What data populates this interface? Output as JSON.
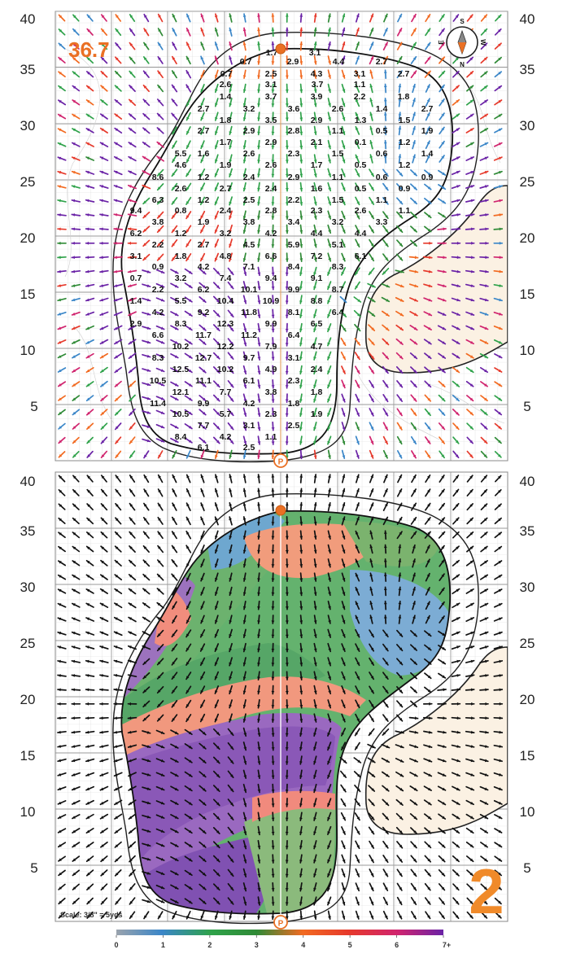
{
  "green_length": "36.7",
  "hole_number": "2",
  "scale_note": "Scale: 3/8\" = 5yds",
  "pin_label": "P",
  "compass": {
    "north": "N",
    "south": "S",
    "east": "E",
    "west": "W"
  },
  "axis_labels": [
    "40",
    "35",
    "30",
    "25",
    "20",
    "15",
    "10",
    "5"
  ],
  "legend": {
    "labels": [
      "0",
      "1",
      "2",
      "3",
      "4",
      "5",
      "6",
      "7+"
    ],
    "colors": [
      "#9aa3ad",
      "#3a86c8",
      "#2fa24a",
      "#2f8a36",
      "#f26a21",
      "#e6392b",
      "#d0246e",
      "#6a22a6"
    ]
  },
  "slope_values": [
    [
      "1.7",
      "3.1"
    ],
    [
      "0.7",
      "2.9",
      "4.4",
      "2.7"
    ],
    [
      "0.7",
      "2.5",
      "4.3",
      "3.1",
      "2.7"
    ],
    [
      "2.6",
      "3.1",
      "3.7",
      "1.1"
    ],
    [
      "1.4",
      "3.7",
      "3.9",
      "2.2",
      "1.8"
    ],
    [
      "2.7",
      "3.2",
      "3.6",
      "2.6",
      "1.4",
      "2.7"
    ],
    [
      "1.8",
      "3.5",
      "2.9",
      "1.3",
      "1.5"
    ],
    [
      "2.7",
      "2.9",
      "2.8",
      "1.1",
      "0.5",
      "1.9"
    ],
    [
      "1.7",
      "2.9",
      "2.1",
      "0.1",
      "1.2"
    ],
    [
      "5.5",
      "1.6",
      "2.6",
      "2.3",
      "1.5",
      "0.6",
      "1.4"
    ],
    [
      "4.6",
      "1.9",
      "2.6",
      "1.7",
      "0.5",
      "1.2"
    ],
    [
      "8.6",
      "1.2",
      "2.4",
      "2.9",
      "1.1",
      "0.6",
      "0.9"
    ],
    [
      "2.6",
      "2.7",
      "2.4",
      "1.6",
      "0.5",
      "0.9"
    ],
    [
      "6.3",
      "1.2",
      "2.5",
      "2.2",
      "1.5",
      "1.1"
    ],
    [
      "9.4",
      "0.8",
      "2.4",
      "2.8",
      "2.3",
      "2.6",
      "1.1"
    ],
    [
      "3.8",
      "1.9",
      "3.8",
      "3.4",
      "3.2",
      "3.3"
    ],
    [
      "6.2",
      "1.2",
      "3.2",
      "4.2",
      "4.4",
      "4.4"
    ],
    [
      "2.2",
      "2.7",
      "4.5",
      "5.9",
      "5.1"
    ],
    [
      "3.1",
      "1.8",
      "4.8",
      "6.6",
      "7.2",
      "6.1"
    ],
    [
      "0.9",
      "4.2",
      "7.1",
      "8.4",
      "8.3"
    ],
    [
      "0.7",
      "3.2",
      "7.4",
      "9.4",
      "9.1"
    ],
    [
      "2.2",
      "6.2",
      "10.1",
      "9.9",
      "8.7"
    ],
    [
      "1.4",
      "5.5",
      "10.4",
      "10.9",
      "8.8"
    ],
    [
      "4.2",
      "9.2",
      "11.8",
      "8.1",
      "6.4"
    ],
    [
      "2.9",
      "8.3",
      "12.3",
      "9.9",
      "6.5"
    ],
    [
      "6.6",
      "11.7",
      "11.2",
      "6.4"
    ],
    [
      "10.2",
      "12.2",
      "7.9",
      "4.7"
    ],
    [
      "8.3",
      "12.7",
      "9.7",
      "3.1"
    ],
    [
      "12.5",
      "10.2",
      "4.9",
      "2.4"
    ],
    [
      "10.5",
      "11.1",
      "6.1",
      "2.3"
    ],
    [
      "12.1",
      "7.7",
      "3.8",
      "1.8"
    ],
    [
      "11.4",
      "9.9",
      "4.2",
      "1.8"
    ],
    [
      "10.5",
      "5.7",
      "2.3",
      "1.9"
    ],
    [
      "7.7",
      "3.1",
      "2.5"
    ],
    [
      "8.4",
      "4.2",
      "1.1"
    ],
    [
      "6.1",
      "2.5"
    ]
  ]
}
